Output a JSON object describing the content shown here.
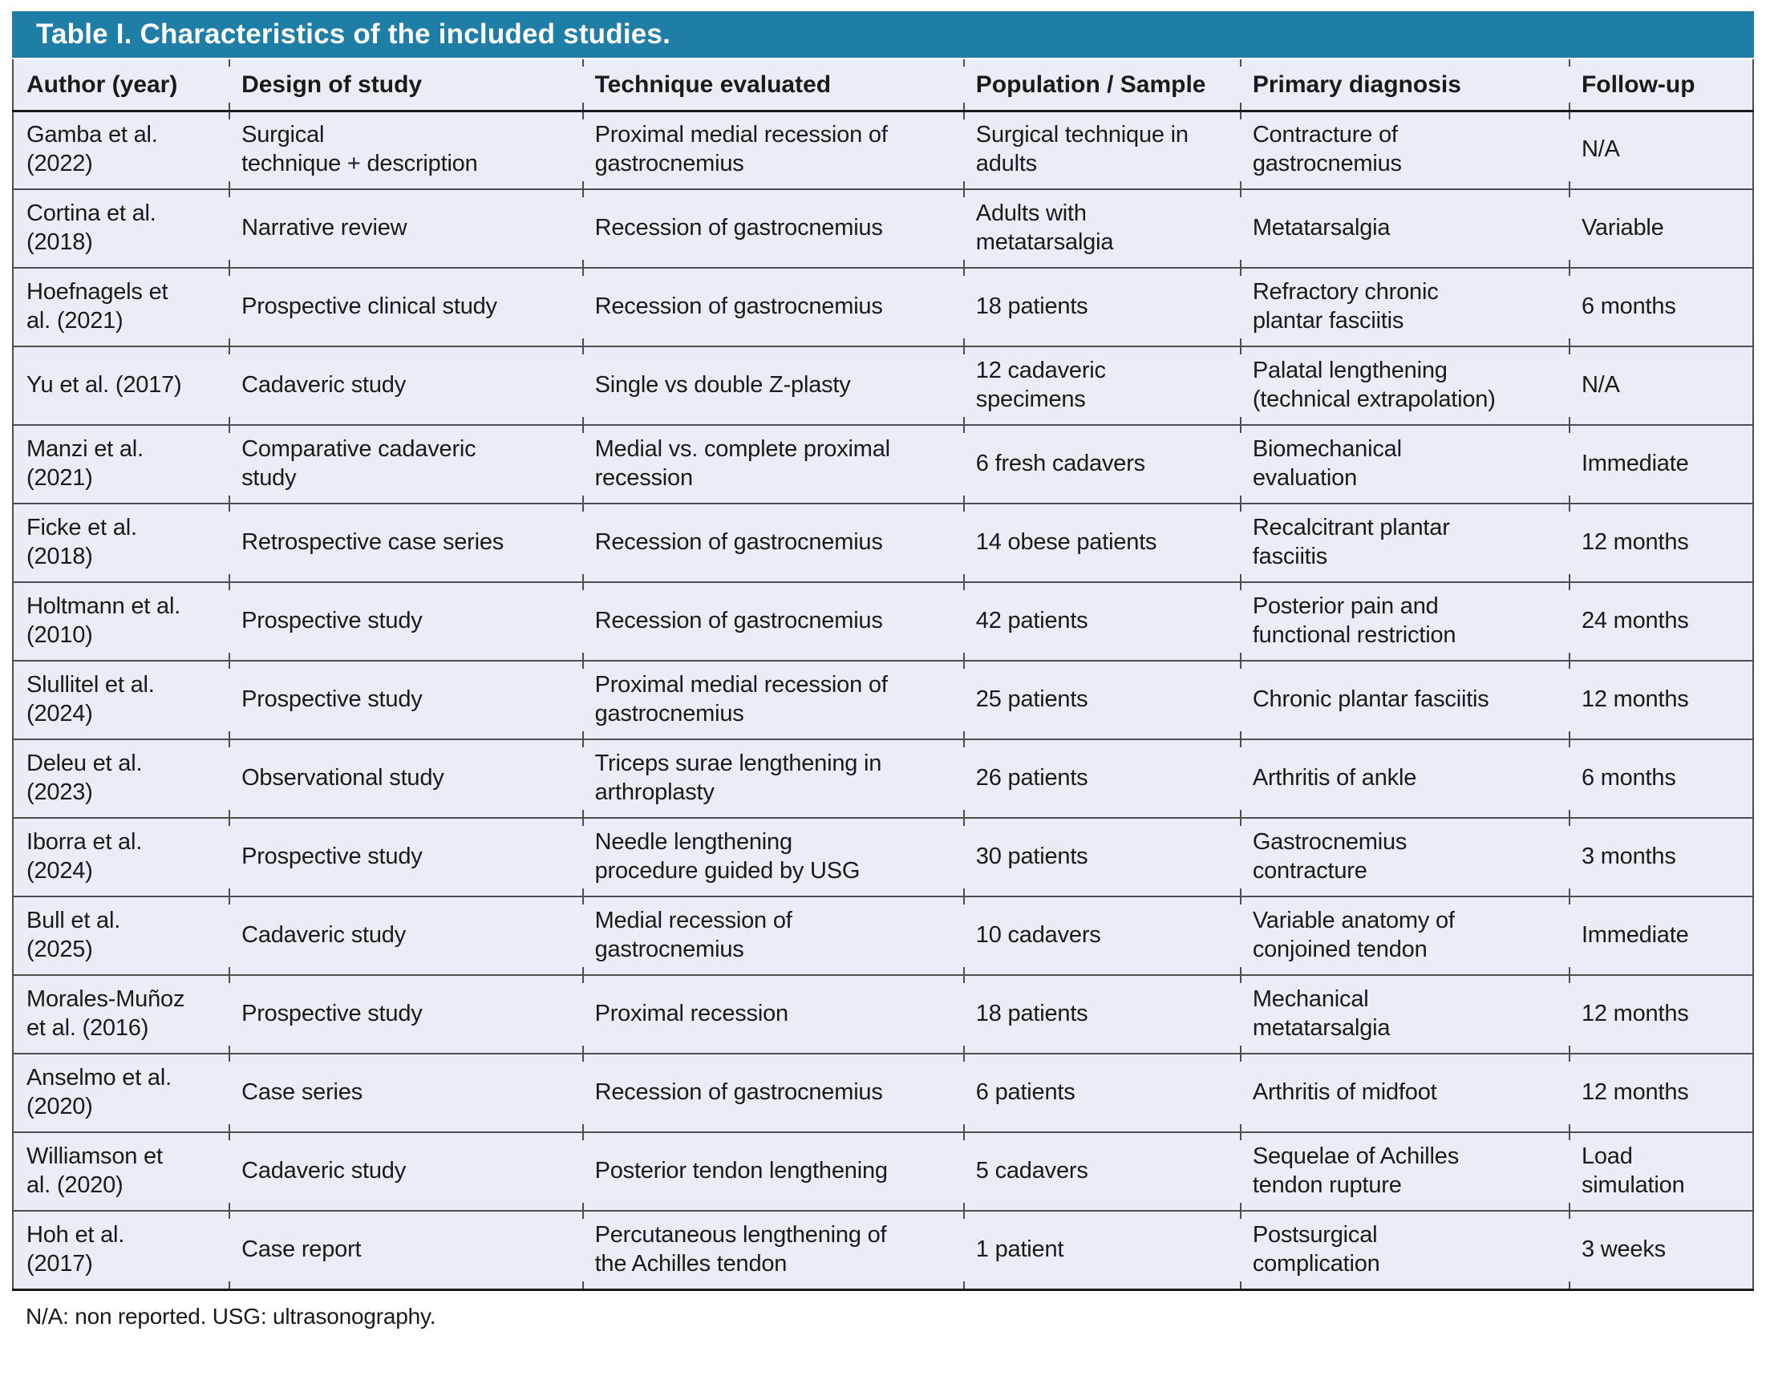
{
  "title": "Table I. Characteristics of the included studies.",
  "footnote": "N/A: non reported. USG: ultrasonography.",
  "colors": {
    "title_bar": "#1e7ea6",
    "title_text": "#ffffff",
    "row_background": "#e9edf6",
    "row_rule": "#4d4d4d",
    "heavy_rule": "#1a1a1a",
    "body_text": "#1a1a1a"
  },
  "table": {
    "columns": [
      "Author (year)",
      "Design of study",
      "Technique evaluated",
      "Population / Sample",
      "Primary diagnosis",
      "Follow-up"
    ],
    "rows": [
      [
        "Gamba et al.\n(2022)",
        "Surgical\ntechnique + description",
        "Proximal medial recession of\ngastrocnemius",
        "Surgical technique in\nadults",
        "Contracture of\ngastrocnemius",
        "N/A"
      ],
      [
        "Cortina et al.\n(2018)",
        "Narrative review",
        "Recession of gastrocnemius",
        "Adults with\nmetatarsalgia",
        "Metatarsalgia",
        "Variable"
      ],
      [
        "Hoefnagels et\nal. (2021)",
        "Prospective clinical study",
        "Recession of gastrocnemius",
        "18 patients",
        "Refractory chronic\nplantar fasciitis",
        "6 months"
      ],
      [
        "Yu et al. (2017)",
        "Cadaveric study",
        "Single vs double Z-plasty",
        "12 cadaveric\nspecimens",
        "Palatal lengthening\n(technical extrapolation)",
        "N/A"
      ],
      [
        "Manzi et al.\n(2021)",
        "Comparative cadaveric\nstudy",
        "Medial vs. complete proximal\nrecession",
        "6 fresh cadavers",
        "Biomechanical\nevaluation",
        "Immediate"
      ],
      [
        "Ficke et al.\n(2018)",
        "Retrospective case series",
        "Recession of gastrocnemius",
        "14 obese patients",
        "Recalcitrant plantar\nfasciitis",
        "12 months"
      ],
      [
        "Holtmann et al.\n(2010)",
        "Prospective study",
        "Recession of gastrocnemius",
        "42 patients",
        "Posterior pain and\nfunctional restriction",
        "24 months"
      ],
      [
        "Slullitel et al.\n(2024)",
        "Prospective study",
        "Proximal medial recession of\ngastrocnemius",
        "25 patients",
        "Chronic plantar fasciitis",
        "12 months"
      ],
      [
        "Deleu et al.\n(2023)",
        "Observational study",
        "Triceps surae lengthening in\narthroplasty",
        "26 patients",
        "Arthritis of ankle",
        "6 months"
      ],
      [
        "Iborra et al.\n(2024)",
        "Prospective study",
        "Needle lengthening\nprocedure guided by USG",
        "30 patients",
        "Gastrocnemius\ncontracture",
        "3 months"
      ],
      [
        "Bull et al.\n(2025)",
        "Cadaveric study",
        "Medial recession of\ngastrocnemius",
        "10 cadavers",
        "Variable anatomy of\nconjoined tendon",
        "Immediate"
      ],
      [
        "Morales-Muñoz\net al. (2016)",
        "Prospective study",
        "Proximal recession",
        "18 patients",
        "Mechanical\nmetatarsalgia",
        "12 months"
      ],
      [
        "Anselmo et al.\n(2020)",
        "Case series",
        "Recession of gastrocnemius",
        "6 patients",
        "Arthritis of midfoot",
        "12 months"
      ],
      [
        "Williamson et\nal. (2020)",
        "Cadaveric study",
        "Posterior tendon lengthening",
        "5 cadavers",
        "Sequelae of Achilles\ntendon rupture",
        "Load\nsimulation"
      ],
      [
        "Hoh et al.\n(2017)",
        "Case report",
        "Percutaneous lengthening of\nthe Achilles tendon",
        "1 patient",
        "Postsurgical\ncomplication",
        "3 weeks"
      ]
    ]
  }
}
